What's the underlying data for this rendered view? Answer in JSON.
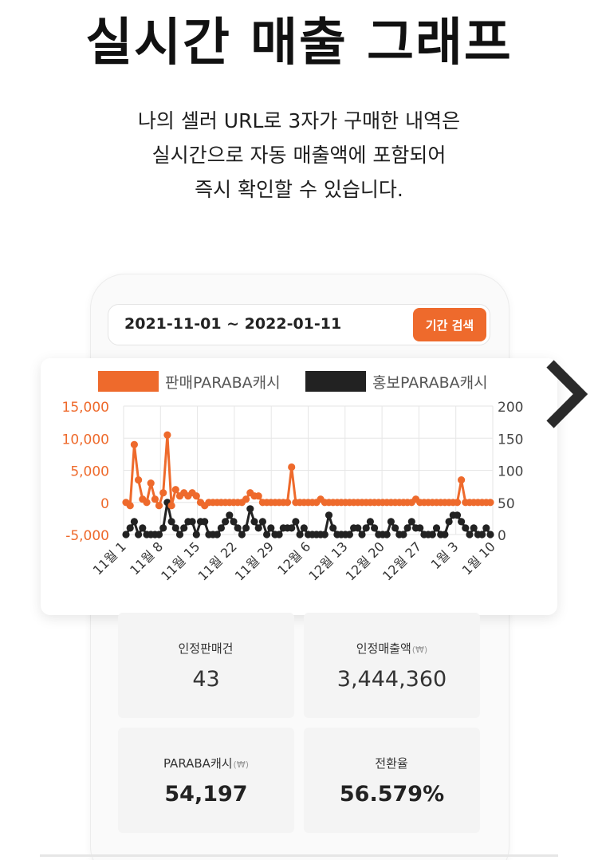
{
  "header": {
    "title": "실시간 매출 그래프",
    "subtitle_lines": [
      "나의 셀러 URL로 3자가 구매한 내역은",
      "실시간으로 자동 매출액에 포함되어",
      "즉시 확인할 수 있습니다."
    ]
  },
  "filter": {
    "date_range": "2021-11-01 ~ 2022-01-11",
    "search_label": "기간 검색"
  },
  "colors": {
    "sales_series": "#ee6a2c",
    "promo_series": "#222222",
    "button": "#ee6a2c"
  },
  "icons": {
    "next": "chevron-right-icon"
  },
  "chart_data": {
    "type": "line",
    "legend_position": "top",
    "grid": true,
    "x_tick_labels": [
      "11월 1",
      "11월 8",
      "11월 15",
      "11월 22",
      "11월 29",
      "12월 6",
      "12월 13",
      "12월 20",
      "12월 27",
      "1월 3",
      "1월 10"
    ],
    "y_left": {
      "ticks": [
        "15,000",
        "10,000",
        "5,000",
        "0",
        "-5,000"
      ],
      "range": [
        -5000,
        15000
      ]
    },
    "y_right": {
      "ticks": [
        "200",
        "150",
        "100",
        "50",
        "0"
      ],
      "range": [
        0,
        200
      ]
    },
    "series": [
      {
        "name": "판매PARABA캐시",
        "axis": "left",
        "values": [
          0,
          -500,
          9000,
          3500,
          500,
          0,
          3000,
          500,
          -500,
          1500,
          10500,
          -500,
          2000,
          1000,
          1500,
          1000,
          1500,
          1000,
          0,
          -500,
          0,
          0,
          0,
          0,
          0,
          0,
          0,
          0,
          0,
          500,
          1500,
          1000,
          1000,
          0,
          0,
          0,
          0,
          0,
          0,
          0,
          5500,
          0,
          0,
          0,
          0,
          0,
          0,
          500,
          0,
          0,
          0,
          0,
          0,
          0,
          0,
          0,
          0,
          0,
          0,
          0,
          0,
          0,
          0,
          0,
          0,
          0,
          0,
          0,
          0,
          0,
          500,
          0,
          0,
          0,
          0,
          0,
          0,
          0,
          0,
          0,
          0,
          3500,
          0,
          0,
          0,
          0,
          0,
          0,
          0
        ]
      },
      {
        "name": "홍보PARABA캐시",
        "axis": "right",
        "values": [
          0,
          10,
          20,
          0,
          10,
          0,
          0,
          0,
          0,
          10,
          50,
          20,
          10,
          0,
          10,
          20,
          20,
          0,
          20,
          20,
          0,
          0,
          0,
          10,
          20,
          30,
          20,
          10,
          0,
          10,
          40,
          20,
          10,
          20,
          0,
          10,
          0,
          0,
          10,
          10,
          10,
          20,
          0,
          10,
          0,
          0,
          0,
          0,
          0,
          30,
          10,
          0,
          0,
          0,
          0,
          10,
          10,
          0,
          10,
          20,
          10,
          0,
          0,
          0,
          20,
          10,
          0,
          0,
          10,
          20,
          10,
          10,
          0,
          0,
          0,
          10,
          0,
          0,
          20,
          30,
          30,
          20,
          10,
          0,
          10,
          0,
          0,
          10,
          0
        ]
      }
    ]
  },
  "stats": [
    {
      "label": "인정판매건",
      "unit": "",
      "value": "43"
    },
    {
      "label": "인정매출액",
      "unit": "(₩)",
      "value": "3,444,360"
    },
    {
      "label": "PARABA캐시",
      "unit": "(₩)",
      "value": "54,197"
    },
    {
      "label": "전환율",
      "unit": "",
      "value": "56.579%"
    }
  ]
}
